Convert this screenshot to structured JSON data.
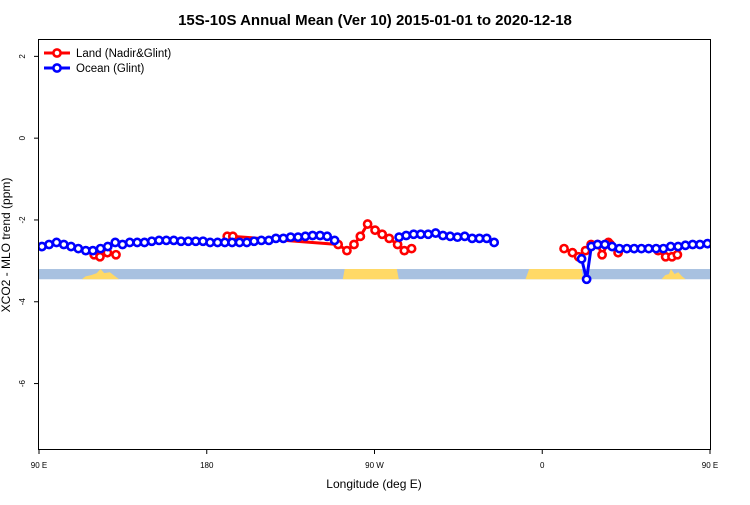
{
  "chart_data": {
    "type": "line",
    "title": "15S-10S Annual Mean (Ver 10)   2015-01-01 to 2020-12-18",
    "xlabel": "Longitude (deg E)",
    "ylabel": "XCO2 - MLO trend (ppm)",
    "xlim": [
      90,
      450
    ],
    "ylim": [
      -7.6,
      2.4
    ],
    "xticks": [
      {
        "value": 90,
        "label": "90 E"
      },
      {
        "value": 180,
        "label": "180"
      },
      {
        "value": 270,
        "label": "90 W"
      },
      {
        "value": 360,
        "label": "0"
      },
      {
        "value": 450,
        "label": "90 E"
      },
      {
        "value": 540,
        "label": "180"
      }
    ],
    "yticks": [
      {
        "value": 2,
        "label": "2"
      },
      {
        "value": 0,
        "label": "0"
      },
      {
        "value": -2,
        "label": "-2"
      },
      {
        "value": -4,
        "label": "-4"
      },
      {
        "value": -6,
        "label": "-6"
      }
    ],
    "legend": {
      "position": "top-left",
      "entries": [
        "Land (Nadir&Glint)",
        "Ocean (Glint)"
      ]
    },
    "grid": false,
    "series": [
      {
        "name": "Land (Nadir&Glint)",
        "color": "#ff0000",
        "segments": [
          {
            "x": [
              119.6,
              122.7,
              126.7,
              131.3
            ],
            "y": [
              -2.85,
              -2.9,
              -2.8,
              -2.85
            ]
          },
          {
            "x": [
              191,
              194,
              250.5,
              255.2,
              259,
              262.4,
              266.3,
              270.3,
              274.1,
              277.9,
              282.4,
              286,
              289.9
            ],
            "y": [
              -2.4,
              -2.4,
              -2.6,
              -2.75,
              -2.6,
              -2.4,
              -2.1,
              -2.25,
              -2.35,
              -2.45,
              -2.6,
              -2.75,
              -2.7
            ]
          },
          {
            "x": [
              371.7,
              376.2,
              379.5,
              383.2,
              386.2,
              389.7,
              392.1,
              395.5
            ],
            "y": [
              -2.7,
              -2.8,
              -2.9,
              -2.75,
              -2.6,
              -2.6,
              -2.85,
              -2.55
            ]
          },
          {
            "x": [
              396.5,
              400.7
            ],
            "y": [
              -2.6,
              -2.8
            ]
          },
          {
            "x": [
              422.2,
              426.2,
              429.6,
              432.5
            ],
            "y": [
              -2.75,
              -2.9,
              -2.9,
              -2.85
            ]
          }
        ]
      },
      {
        "name": "Ocean (Glint)",
        "color": "#0000ff",
        "segments": [
          {
            "x": [
              91.6,
              95.4,
              99.4,
              103.3,
              107.2,
              111.1,
              115.1,
              118.9,
              123,
              126.9,
              130.9,
              134.8,
              138.7,
              142.7,
              146.6,
              150.5,
              154.4,
              158.3,
              162.3,
              166.2,
              170.1,
              174.1,
              178,
              181.8,
              185.8,
              189.7,
              193.6,
              197.6,
              201.5,
              205.4,
              209.3,
              213.3,
              217.1,
              221.1,
              225,
              229,
              232.9,
              236.8,
              240.8,
              244.6,
              248.6
            ],
            "y": [
              -2.65,
              -2.6,
              -2.55,
              -2.6,
              -2.65,
              -2.7,
              -2.75,
              -2.75,
              -2.7,
              -2.65,
              -2.55,
              -2.6,
              -2.55,
              -2.55,
              -2.55,
              -2.52,
              -2.5,
              -2.5,
              -2.5,
              -2.52,
              -2.52,
              -2.52,
              -2.52,
              -2.55,
              -2.55,
              -2.55,
              -2.55,
              -2.55,
              -2.55,
              -2.52,
              -2.5,
              -2.5,
              -2.45,
              -2.45,
              -2.42,
              -2.42,
              -2.4,
              -2.38,
              -2.38,
              -2.4,
              -2.5
            ]
          },
          {
            "x": [
              283.2,
              287,
              291,
              294.8,
              298.8,
              302.8,
              306.7,
              310.6,
              314.5,
              318.4,
              322.4,
              326.3,
              330.2,
              334.2
            ],
            "y": [
              -2.42,
              -2.38,
              -2.35,
              -2.35,
              -2.35,
              -2.32,
              -2.38,
              -2.4,
              -2.42,
              -2.4,
              -2.45,
              -2.45,
              -2.45,
              -2.55
            ]
          },
          {
            "x": [
              381.1,
              383.8,
              386.3
            ],
            "y": [
              -2.95,
              -3.45,
              -2.65
            ]
          },
          {
            "x": [
              389.7,
              393.6,
              397.5,
              401.4,
              405.4,
              409.3,
              413.2,
              417.1,
              421.1,
              425,
              428.9,
              432.9,
              436.8,
              440.7,
              444.6,
              448.6,
              452.5,
              456.4,
              460.4,
              464.3,
              468.2,
              472.1,
              476.1,
              480,
              483.9,
              487.9,
              491.8,
              495.7,
              499.6,
              503.6,
              507.5,
              511.4,
              515.4,
              519.3,
              523.2,
              527.1,
              531.1,
              535,
              538.9
            ],
            "y": [
              -2.6,
              -2.6,
              -2.65,
              -2.7,
              -2.7,
              -2.7,
              -2.7,
              -2.7,
              -2.7,
              -2.7,
              -2.65,
              -2.65,
              -2.62,
              -2.6,
              -2.6,
              -2.58,
              -2.6,
              -2.62,
              -2.65,
              -2.65,
              -2.7,
              -2.75,
              -2.75,
              -2.8,
              -2.82,
              -2.8,
              -2.8,
              -2.75,
              -2.75,
              -2.7,
              -2.65,
              -2.6,
              -2.6,
              -2.6,
              -2.6,
              -2.6,
              -2.58,
              -2.58,
              -2.55
            ]
          }
        ]
      }
    ],
    "reference_band": {
      "y_top": -3.2,
      "y_bottom": -3.45,
      "color": "#a8c1e0"
    },
    "land_mask": {
      "color": "#ffd966",
      "regions": [
        {
          "points": [
            [
              113,
              -3.45
            ],
            [
              115,
              -3.38
            ],
            [
              118,
              -3.35
            ],
            [
              121,
              -3.3
            ],
            [
              123,
              -3.2
            ],
            [
              125,
              -3.3
            ],
            [
              128,
              -3.28
            ],
            [
              130,
              -3.35
            ],
            [
              133,
              -3.45
            ]
          ]
        },
        {
          "points": [
            [
              253,
              -3.45
            ],
            [
              254,
              -3.2
            ],
            [
              282,
              -3.2
            ],
            [
              283,
              -3.45
            ]
          ]
        },
        {
          "points": [
            [
              351,
              -3.45
            ],
            [
              353,
              -3.2
            ],
            [
              381,
              -3.2
            ],
            [
              382,
              -3.45
            ]
          ]
        },
        {
          "points": [
            [
              424,
              -3.45
            ],
            [
              426,
              -3.35
            ],
            [
              428,
              -3.32
            ],
            [
              429,
              -3.2
            ],
            [
              431,
              -3.32
            ],
            [
              433,
              -3.28
            ],
            [
              435,
              -3.38
            ],
            [
              437,
              -3.45
            ]
          ]
        }
      ]
    }
  }
}
